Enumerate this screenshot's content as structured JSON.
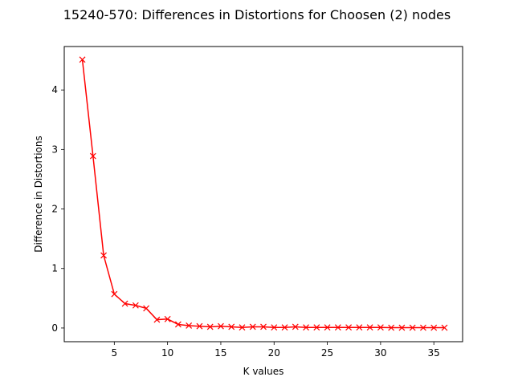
{
  "chart_data": {
    "type": "line",
    "title": "15240-570: Differences in Distortions for Choosen (2) nodes",
    "xlabel": "K values",
    "ylabel": "Difference in Distortions",
    "xlim": [
      0.3,
      37.7
    ],
    "ylim": [
      -0.23,
      4.73
    ],
    "xticks": [
      5,
      10,
      15,
      20,
      25,
      30,
      35
    ],
    "yticks": [
      0,
      1,
      2,
      3,
      4
    ],
    "grid": false,
    "series": [
      {
        "color": "#ff0000",
        "marker": "x",
        "x": [
          2,
          3,
          4,
          5,
          6,
          7,
          8,
          9,
          10,
          11,
          12,
          13,
          14,
          15,
          16,
          17,
          18,
          19,
          20,
          21,
          22,
          23,
          24,
          25,
          26,
          27,
          28,
          29,
          30,
          31,
          32,
          33,
          34,
          35,
          36
        ],
        "y": [
          4.51,
          2.89,
          1.22,
          0.57,
          0.41,
          0.38,
          0.33,
          0.14,
          0.15,
          0.06,
          0.04,
          0.03,
          0.02,
          0.03,
          0.02,
          0.01,
          0.02,
          0.02,
          0.01,
          0.01,
          0.02,
          0.01,
          0.01,
          0.01,
          0.01,
          0.01,
          0.01,
          0.01,
          0.01,
          0.005,
          0.005,
          0.005,
          0.005,
          0.005,
          0.005
        ]
      }
    ]
  }
}
